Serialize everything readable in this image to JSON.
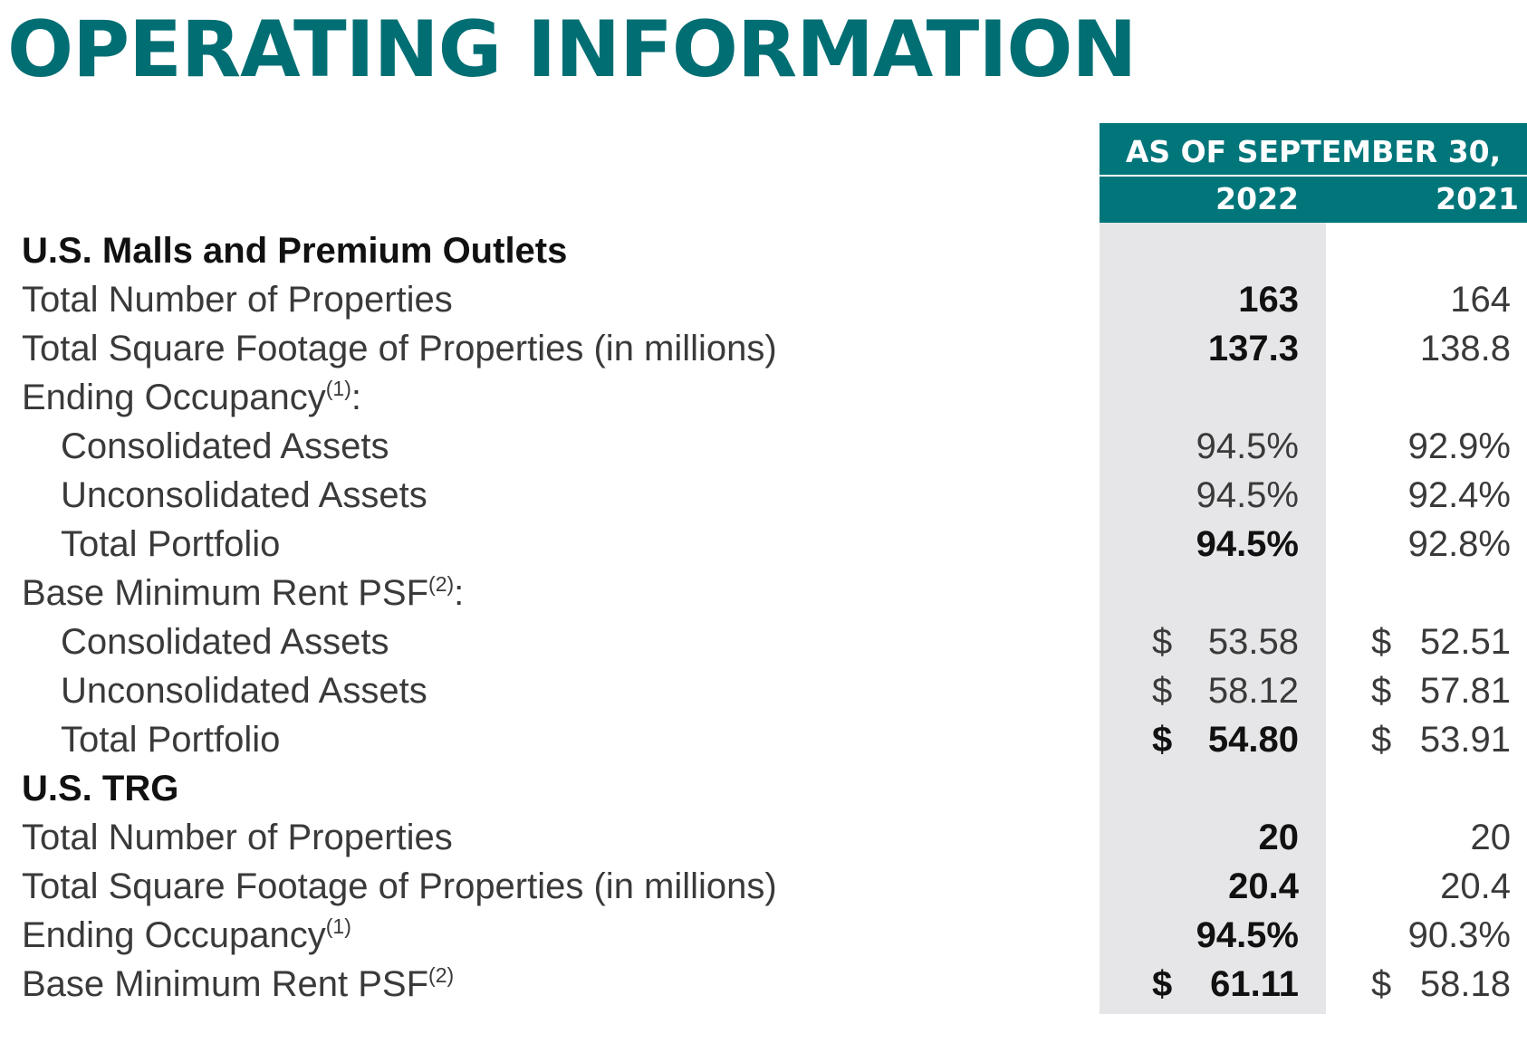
{
  "title": "OPERATING INFORMATION",
  "header": {
    "as_of": "AS OF SEPTEMBER 30,",
    "year1": "2022",
    "year2": "2021"
  },
  "sections": [
    {
      "name": "U.S. Malls and Premium Outlets",
      "rows": [
        {
          "label": "Total Number of Properties",
          "v2022": "163",
          "v2021": "164"
        },
        {
          "label": "Total Square Footage of Properties (in millions)",
          "v2022": "137.3",
          "v2021": "138.8"
        },
        {
          "label": "Ending Occupancy",
          "note": "(1)",
          "suffix": ":"
        },
        {
          "label": "Consolidated Assets",
          "v2022": "94.5%",
          "v2021": "92.9%"
        },
        {
          "label": "Unconsolidated Assets",
          "v2022": "94.5%",
          "v2021": "92.4%"
        },
        {
          "label": "Total Portfolio",
          "v2022": "94.5%",
          "v2021": "92.8%"
        },
        {
          "label": "Base Minimum Rent PSF",
          "note": "(2)",
          "suffix": ":"
        },
        {
          "label": "Consolidated Assets",
          "cur": "$",
          "v2022": "53.58",
          "v2021": "52.51"
        },
        {
          "label": "Unconsolidated Assets",
          "cur": "$",
          "v2022": "58.12",
          "v2021": "57.81"
        },
        {
          "label": "Total Portfolio",
          "cur": "$",
          "v2022": "54.80",
          "v2021": "53.91"
        }
      ]
    },
    {
      "name": "U.S. TRG",
      "rows": [
        {
          "label": "Total Number of Properties",
          "v2022": "20",
          "v2021": "20"
        },
        {
          "label": "Total Square Footage of Properties (in millions)",
          "v2022": "20.4",
          "v2021": "20.4"
        },
        {
          "label": "Ending Occupancy",
          "note": "(1)",
          "v2022": "94.5%",
          "v2021": "90.3%"
        },
        {
          "label": "Base Minimum Rent PSF",
          "note": "(2)",
          "cur": "$",
          "v2022": "61.11",
          "v2021": "58.18"
        }
      ]
    }
  ]
}
